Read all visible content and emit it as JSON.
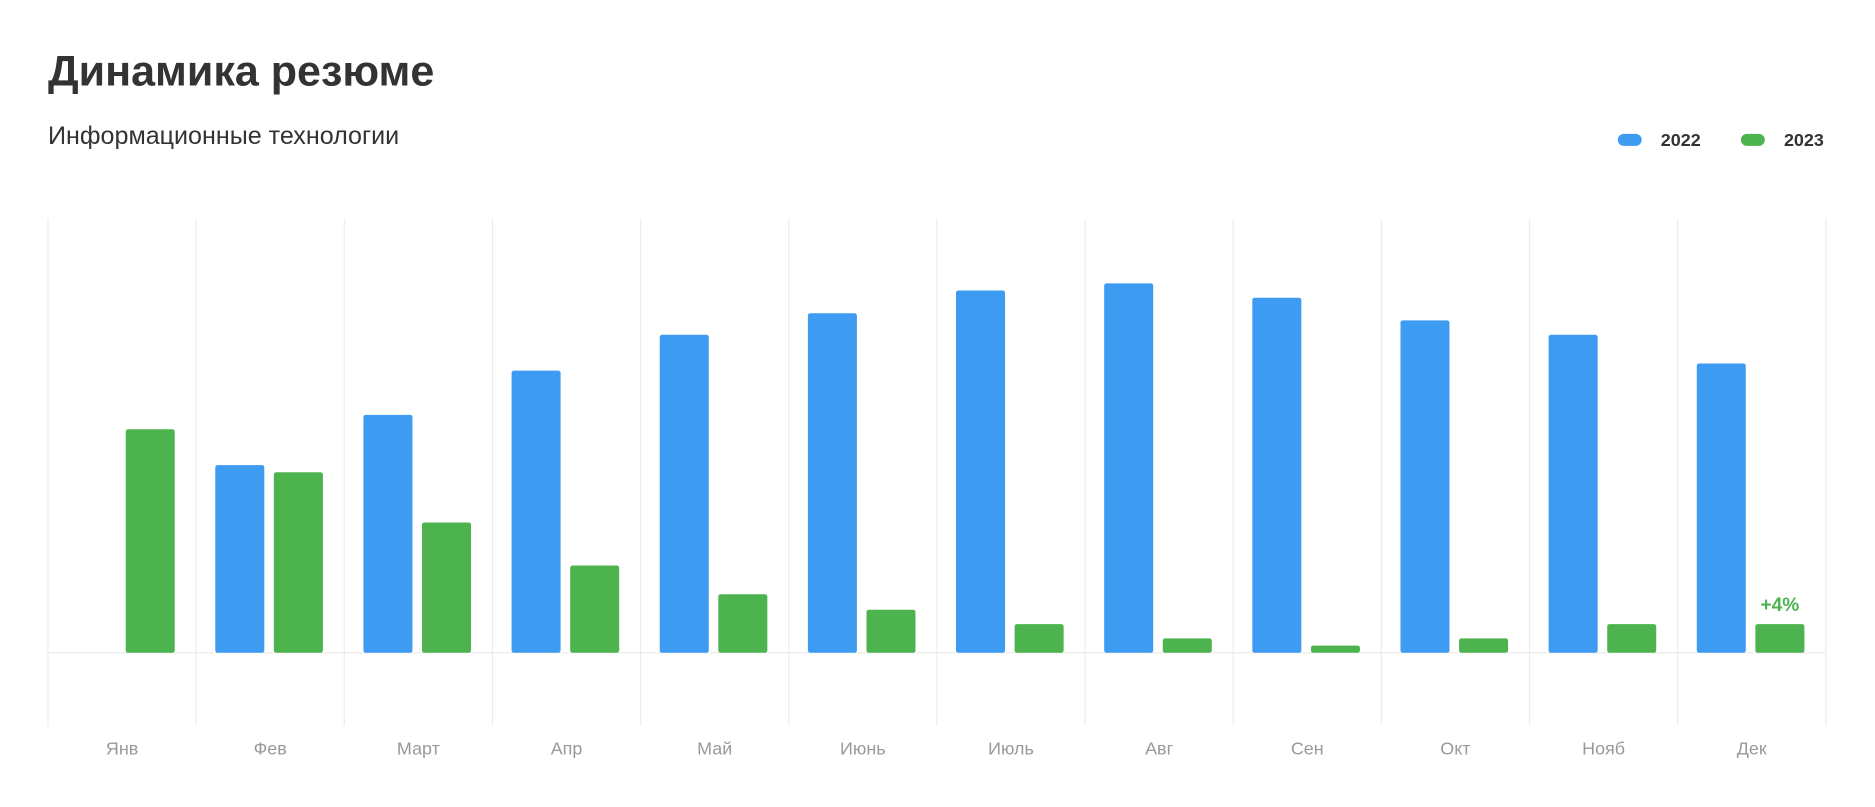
{
  "chart_data": {
    "type": "bar",
    "title": "Динамика резюме",
    "subtitle": "Информационные технологии",
    "categories": [
      "Янв",
      "Фев",
      "Март",
      "Апр",
      "Май",
      "Июнь",
      "Июль",
      "Авг",
      "Сен",
      "Окт",
      "Нояб",
      "Дек"
    ],
    "series": [
      {
        "name": "2022",
        "color": "#3d9bf2",
        "values": [
          null,
          157,
          199,
          236,
          266,
          284,
          303,
          309,
          297,
          278,
          266,
          242
        ]
      },
      {
        "name": "2023",
        "color": "#4cb34f",
        "values": [
          187,
          151,
          109,
          73,
          49,
          36,
          24,
          12,
          6,
          12,
          24,
          24
        ]
      }
    ],
    "ylim": [
      -61,
      363
    ],
    "annotation": "+4%",
    "legend": "top-right",
    "grid": true
  }
}
